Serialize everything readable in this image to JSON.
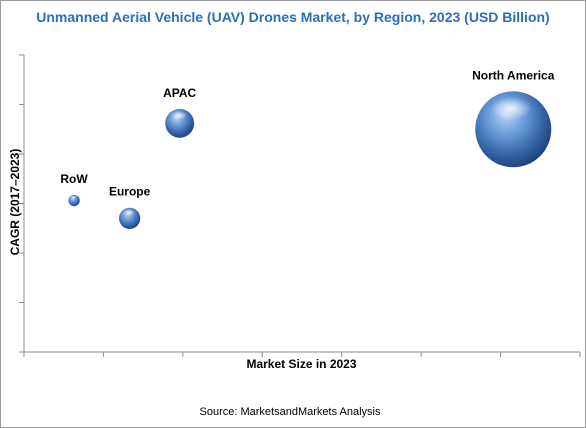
{
  "chart_data": {
    "type": "bubble",
    "title": "Unmanned Aerial Vehicle (UAV) Drones Market, by Region, 2023 (USD Billion)",
    "xlabel": "Market Size in 2023",
    "ylabel": "CAGR (2017–2023)",
    "x_ticks_labeled": false,
    "y_ticks_labeled": false,
    "grid": false,
    "legend": "none",
    "bubble_color": "#3f73b4",
    "points": [
      {
        "label": "North America",
        "x": 0.88,
        "y": 0.75,
        "size": 1.0
      },
      {
        "label": "APAC",
        "x": 0.28,
        "y": 0.77,
        "size": 0.38
      },
      {
        "label": "Europe",
        "x": 0.19,
        "y": 0.45,
        "size": 0.28
      },
      {
        "label": "RoW",
        "x": 0.09,
        "y": 0.51,
        "size": 0.15
      }
    ]
  },
  "source": "Source:  MarketsandMarkets Analysis"
}
